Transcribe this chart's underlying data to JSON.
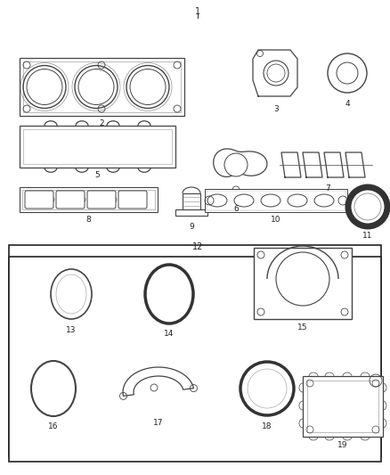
{
  "bg_color": "#ffffff",
  "box_color": "#222222",
  "pc": "#444444",
  "fig_width": 4.38,
  "fig_height": 5.33,
  "dpi": 100
}
